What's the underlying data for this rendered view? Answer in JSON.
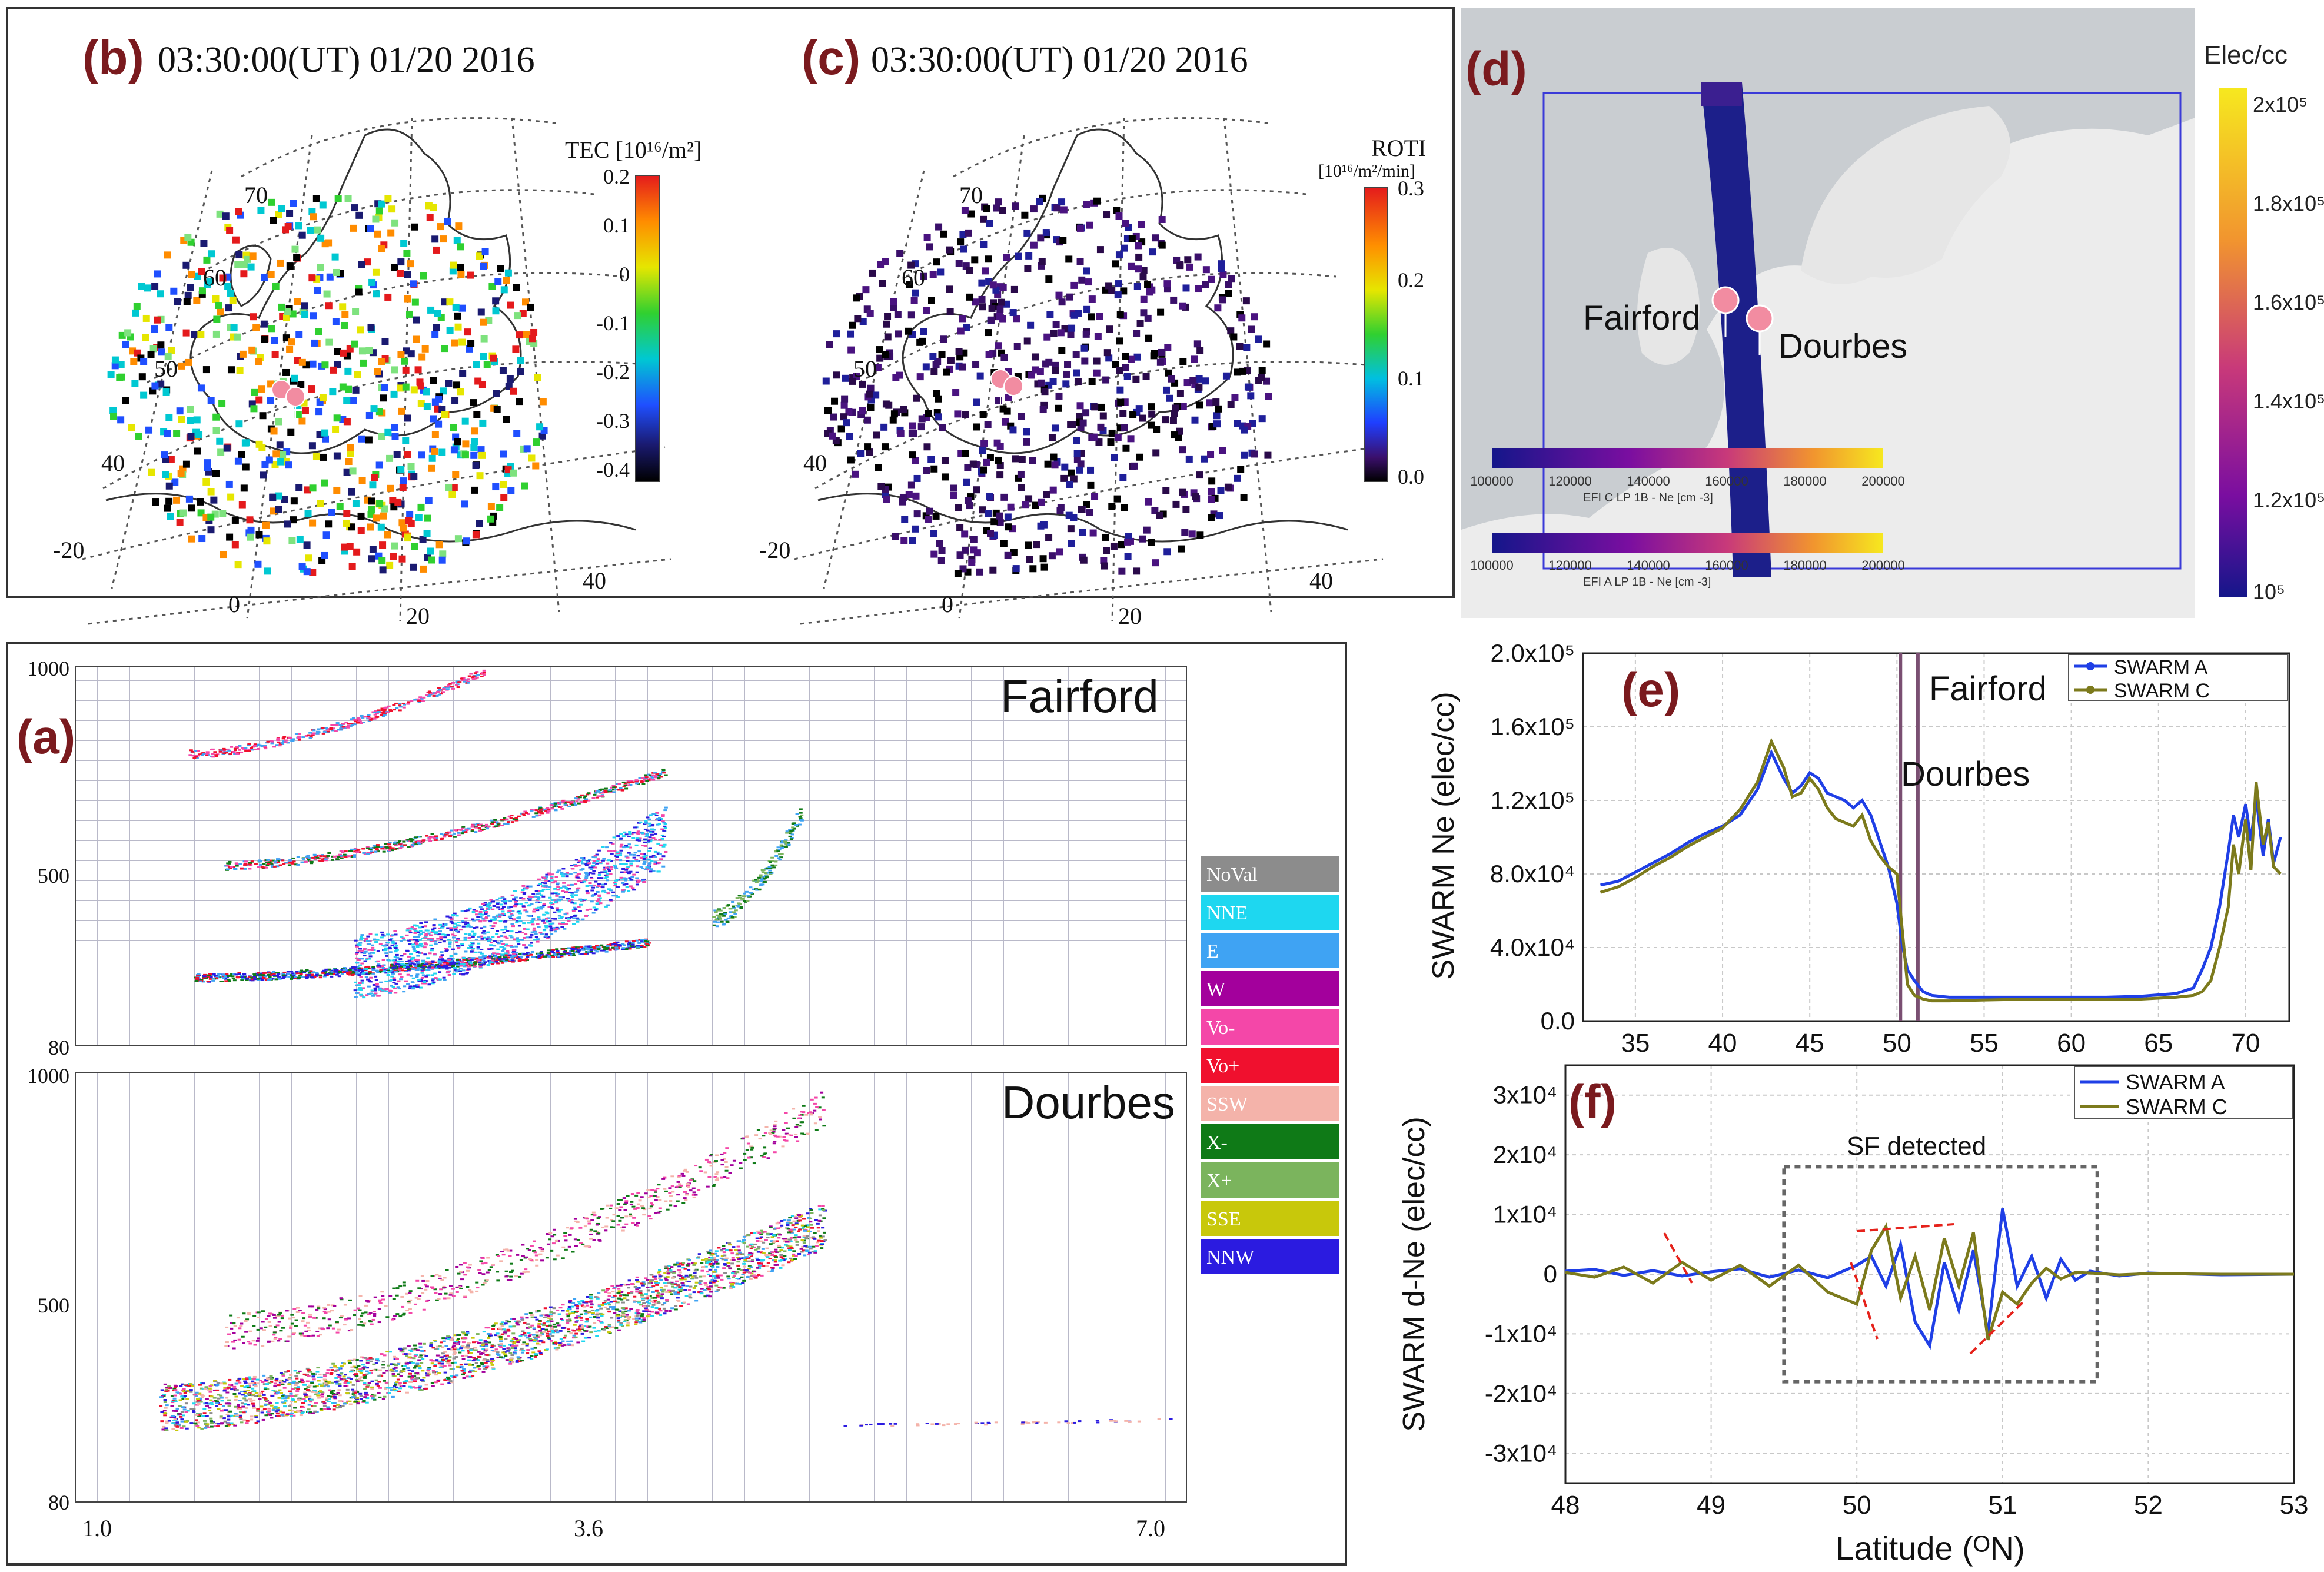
{
  "colors": {
    "panel_letter": "#7a1a1e",
    "swarm_a": "#1f3fe6",
    "swarm_c": "#7c7a1c",
    "ocean": "#cfd3d6",
    "land": "#ececec",
    "track": "#1c1f8a",
    "pin": "#f28ca1"
  },
  "panels": {
    "b": {
      "letter": "(b)",
      "title": "03:30:00(UT)  01/20 2016",
      "colorbar_title": "TEC [10¹⁶/m²]",
      "colorbar_ticks": [
        "0.2",
        "0.1",
        "0",
        "-0.1",
        "-0.2",
        "-0.3",
        "-0.4"
      ],
      "lat_labels": [
        "70",
        "60",
        "50",
        "40"
      ],
      "lon_labels": [
        "-20",
        "0",
        "20",
        "40"
      ]
    },
    "c": {
      "letter": "(c)",
      "title": "03:30:00(UT)  01/20 2016",
      "colorbar_title": "ROTI",
      "colorbar_units": "[10¹⁶/m²/min]",
      "colorbar_ticks": [
        "0.3",
        "0.2",
        "0.1",
        "0.0"
      ],
      "lat_labels": [
        "70",
        "60",
        "50",
        "40"
      ],
      "lon_labels": [
        "-20",
        "0",
        "20",
        "40"
      ]
    },
    "d": {
      "letter": "(d)",
      "colorbar_title": "Elec/cc",
      "colorbar_ticks": [
        "2x10⁵",
        "1.8x10⁵",
        "1.6x10⁵",
        "1.4x10⁵",
        "1.2x10⁵",
        "10⁵"
      ],
      "stations": [
        "Fairford",
        "Dourbes"
      ],
      "mini_bar_ticks": [
        "100000",
        "120000",
        "140000",
        "160000",
        "180000",
        "200000"
      ],
      "mini_bar_c_caption": "EFI C LP 1B - Ne [cm -3]",
      "mini_bar_a_caption": "EFI A LP 1B - Ne [cm -3]"
    },
    "a": {
      "letter": "(a)",
      "top_station": "Fairford",
      "bottom_station": "Dourbes",
      "y_ticks": [
        "1000",
        "500",
        "80"
      ],
      "x_ticks": [
        "1.0",
        "3.6",
        "7.0"
      ],
      "legend": [
        {
          "label": "NoVal",
          "color": "#8c8c8c"
        },
        {
          "label": "NNE",
          "color": "#1ed7f0"
        },
        {
          "label": "E",
          "color": "#3fa3f3"
        },
        {
          "label": "W",
          "color": "#a3009c"
        },
        {
          "label": "Vo-",
          "color": "#f447a8"
        },
        {
          "label": "Vo+",
          "color": "#f0102e"
        },
        {
          "label": "SSW",
          "color": "#f4b3aa"
        },
        {
          "label": "X-",
          "color": "#0f7a17"
        },
        {
          "label": "X+",
          "color": "#7bb45d"
        },
        {
          "label": "SSE",
          "color": "#c8c80b"
        },
        {
          "label": "NNW",
          "color": "#2b1be0"
        }
      ]
    },
    "e": {
      "letter": "(e)",
      "annotations": [
        "Fairford",
        "Dourbes"
      ],
      "y_tick_labels": [
        "0.0",
        "4.0x10⁴",
        "8.0x10⁴",
        "1.2x10⁵",
        "1.6x10⁵",
        "2.0x10⁵"
      ]
    },
    "f": {
      "letter": "(f)",
      "box_label": "SF detected",
      "y_tick_labels": [
        "-3x10⁴",
        "-2x10⁴",
        "-1x10⁴",
        "0",
        "1x10⁴",
        "2x10⁴",
        "3x10⁴"
      ]
    }
  },
  "chart_data": [
    {
      "id": "e",
      "type": "line",
      "title": "",
      "xlabel": "",
      "ylabel": "SWARM Ne (elec/cc)",
      "xlim": [
        32,
        72.5
      ],
      "ylim": [
        0,
        200000
      ],
      "x_ticks": [
        35,
        40,
        45,
        50,
        55,
        60,
        65,
        70
      ],
      "y_ticks": [
        0,
        40000,
        80000,
        120000,
        160000,
        200000
      ],
      "vertical_lines": [
        50.2,
        51.2
      ],
      "legend": [
        "SWARM A",
        "SWARM C"
      ],
      "series": [
        {
          "name": "SWARM A",
          "x": [
            33,
            34,
            35,
            36,
            37,
            38,
            39,
            40,
            41,
            42,
            42.8,
            43.5,
            44,
            44.5,
            45,
            45.5,
            46,
            46.5,
            47,
            47.5,
            48,
            48.5,
            49,
            49.5,
            50,
            50.3,
            50.6,
            51,
            51.5,
            52,
            53,
            55,
            58,
            60,
            62,
            64,
            66,
            67,
            67.5,
            68,
            68.5,
            69,
            69.3,
            69.6,
            70,
            70.3,
            70.6,
            71,
            71.3,
            71.6,
            72
          ],
          "y": [
            74000,
            76000,
            81000,
            86000,
            91000,
            97000,
            102000,
            106000,
            112000,
            126000,
            146000,
            132000,
            124000,
            128000,
            135000,
            132000,
            124000,
            122000,
            120000,
            116000,
            120000,
            112000,
            98000,
            84000,
            64000,
            42000,
            28000,
            22000,
            16000,
            14000,
            13000,
            13000,
            13000,
            13000,
            13000,
            13500,
            15000,
            18000,
            28000,
            40000,
            62000,
            92000,
            112000,
            100000,
            118000,
            98000,
            122000,
            90000,
            110000,
            86000,
            100000
          ]
        },
        {
          "name": "SWARM C",
          "x": [
            33,
            34,
            35,
            36,
            37,
            38,
            39,
            40,
            41,
            42,
            42.8,
            43.5,
            44,
            44.5,
            45,
            45.5,
            46,
            46.5,
            47,
            47.5,
            48,
            48.5,
            49,
            49.5,
            50,
            50.3,
            50.6,
            51,
            51.5,
            52,
            53,
            55,
            58,
            60,
            62,
            64,
            66,
            67,
            67.5,
            68,
            68.5,
            69,
            69.3,
            69.6,
            70,
            70.3,
            70.6,
            71,
            71.3,
            71.6,
            72
          ],
          "y": [
            70000,
            73000,
            78000,
            84000,
            89000,
            95000,
            100000,
            105000,
            115000,
            130000,
            152000,
            138000,
            122000,
            124000,
            132000,
            126000,
            116000,
            110000,
            108000,
            106000,
            112000,
            98000,
            90000,
            84000,
            80000,
            50000,
            20000,
            14000,
            12000,
            11000,
            11000,
            11500,
            12000,
            12000,
            12000,
            12000,
            13000,
            14000,
            16000,
            22000,
            40000,
            62000,
            96000,
            80000,
            110000,
            82000,
            130000,
            96000,
            108000,
            84000,
            80000
          ]
        }
      ]
    },
    {
      "id": "f",
      "type": "line",
      "title": "",
      "xlabel": "Latitude (ᴼN)",
      "ylabel": "SWARM d-Ne (elec/cc)",
      "xlim": [
        48,
        53
      ],
      "ylim": [
        -35000,
        35000
      ],
      "x_ticks": [
        48,
        49,
        50,
        51,
        52,
        53
      ],
      "y_ticks": [
        -30000,
        -20000,
        -10000,
        0,
        10000,
        20000,
        30000
      ],
      "detection_box": {
        "x": [
          49.5,
          51.65
        ],
        "y": [
          -18000,
          18000
        ]
      },
      "legend": [
        "SWARM A",
        "SWARM C"
      ],
      "series": [
        {
          "name": "SWARM A",
          "x": [
            48,
            48.2,
            48.4,
            48.6,
            48.8,
            49,
            49.2,
            49.4,
            49.6,
            49.8,
            50,
            50.1,
            50.2,
            50.3,
            50.4,
            50.5,
            50.6,
            50.7,
            50.8,
            50.9,
            51,
            51.1,
            51.2,
            51.3,
            51.4,
            51.5,
            51.6,
            51.8,
            52,
            52.5,
            53
          ],
          "y": [
            500,
            800,
            -200,
            600,
            -300,
            400,
            900,
            -500,
            700,
            -600,
            1500,
            3000,
            -2000,
            5000,
            -8000,
            -12000,
            2000,
            -6000,
            4000,
            -10000,
            11000,
            -2000,
            3000,
            -4000,
            2500,
            -1000,
            500,
            -300,
            200,
            -100,
            0
          ]
        },
        {
          "name": "SWARM C",
          "x": [
            48,
            48.2,
            48.4,
            48.6,
            48.8,
            49,
            49.2,
            49.4,
            49.6,
            49.8,
            50,
            50.1,
            50.2,
            50.3,
            50.4,
            50.5,
            50.6,
            50.7,
            50.8,
            50.9,
            51,
            51.1,
            51.2,
            51.3,
            51.4,
            51.5,
            51.6,
            51.8,
            52,
            52.5,
            53
          ],
          "y": [
            300,
            -500,
            1200,
            -1500,
            2000,
            -1000,
            1500,
            -2000,
            1500,
            -3000,
            -5000,
            4000,
            8000,
            -4000,
            3000,
            -6000,
            6000,
            -2000,
            7000,
            -11000,
            -3000,
            -5000,
            -1500,
            1000,
            -800,
            300,
            200,
            -100,
            100,
            0,
            0
          ]
        }
      ]
    }
  ]
}
